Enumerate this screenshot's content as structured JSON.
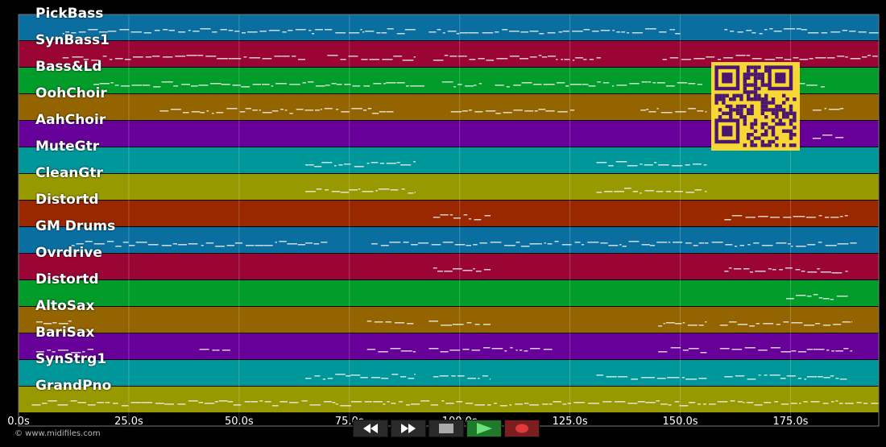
{
  "copyright": "© www.midifiles.com",
  "timeline": {
    "ticks": [
      "0.0s",
      "25.0s",
      "50.0s",
      "75.0s",
      "100.0s",
      "125.0s",
      "150.0s",
      "175.0s"
    ],
    "tick_values": [
      0,
      25,
      50,
      75,
      100,
      125,
      150,
      175
    ],
    "range": [
      0,
      195
    ]
  },
  "tracks": [
    {
      "name": "PickBass",
      "color": "#0b6ea1",
      "segments": [
        [
          10,
          90
        ],
        [
          93,
          150
        ],
        [
          160,
          195
        ]
      ]
    },
    {
      "name": "SynBass1",
      "color": "#9b0535",
      "segments": [
        [
          10,
          65
        ],
        [
          70,
          90
        ],
        [
          94,
          132
        ],
        [
          146,
          195
        ]
      ]
    },
    {
      "name": "Bass&Ld",
      "color": "#029c2a",
      "segments": [
        [
          17,
          92
        ],
        [
          96,
          105
        ],
        [
          108,
          155
        ],
        [
          176,
          183
        ]
      ]
    },
    {
      "name": "OohChoir",
      "color": "#946400",
      "segments": [
        [
          32,
          85
        ],
        [
          98,
          126
        ],
        [
          141,
          156
        ],
        [
          180,
          187
        ]
      ]
    },
    {
      "name": "AahChoir",
      "color": "#660099",
      "segments": [
        [
          180,
          187
        ]
      ]
    },
    {
      "name": "MuteGtr",
      "color": "#00979b",
      "segments": [
        [
          65,
          90
        ],
        [
          131,
          156
        ]
      ]
    },
    {
      "name": "CleanGtr",
      "color": "#989900",
      "segments": [
        [
          65,
          90
        ],
        [
          131,
          156
        ]
      ]
    },
    {
      "name": "Distortd",
      "color": "#992700",
      "segments": [
        [
          94,
          107
        ],
        [
          160,
          188
        ]
      ]
    },
    {
      "name": "GM Drums",
      "color": "#0b6ea1",
      "segments": [
        [
          12,
          70
        ],
        [
          80,
          190
        ]
      ]
    },
    {
      "name": "Ovrdrive",
      "color": "#9b0535",
      "segments": [
        [
          94,
          107
        ],
        [
          160,
          188
        ]
      ]
    },
    {
      "name": "Distortd",
      "color": "#029c2a",
      "segments": [
        [
          174,
          188
        ]
      ]
    },
    {
      "name": "AltoSax",
      "color": "#946400",
      "segments": [
        [
          4,
          12
        ],
        [
          79,
          90
        ],
        [
          93,
          107
        ],
        [
          145,
          156
        ],
        [
          159,
          189
        ]
      ]
    },
    {
      "name": "BariSax",
      "color": "#660099",
      "segments": [
        [
          4,
          17
        ],
        [
          41,
          48
        ],
        [
          79,
          90
        ],
        [
          93,
          121
        ],
        [
          145,
          156
        ],
        [
          159,
          189
        ]
      ]
    },
    {
      "name": "SynStrg1",
      "color": "#00979b",
      "segments": [
        [
          65,
          90
        ],
        [
          94,
          107
        ],
        [
          131,
          156
        ],
        [
          160,
          188
        ]
      ]
    },
    {
      "name": "GrandPno",
      "color": "#989900",
      "segments": [
        [
          3,
          195
        ]
      ]
    }
  ],
  "transport": {
    "buttons": [
      {
        "name": "rewind-button",
        "icon": "rewind-icon"
      },
      {
        "name": "fast-forward-button",
        "icon": "fast-forward-icon"
      },
      {
        "name": "stop-button",
        "icon": "stop-icon"
      },
      {
        "name": "play-button",
        "icon": "play-icon"
      },
      {
        "name": "record-button",
        "icon": "record-icon"
      }
    ]
  }
}
